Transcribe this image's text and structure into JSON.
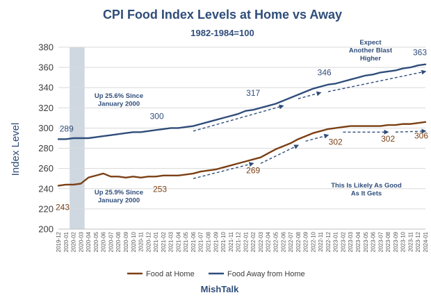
{
  "chart_data": {
    "type": "line",
    "title": "CPI Food Index Levels at Home vs Away",
    "subtitle": "1982-1984=100",
    "ylabel": "Index Level",
    "xlabel": "",
    "source": "MishTalk",
    "ylim": [
      200,
      380
    ],
    "yticks": [
      200,
      220,
      240,
      260,
      280,
      300,
      320,
      340,
      360,
      380
    ],
    "grid": "horizontal",
    "legend_position": "bottom",
    "categories": [
      "2019-12",
      "2020-01",
      "2020-02",
      "2020-03",
      "2020-04",
      "2020-05",
      "2020-06",
      "2020-07",
      "2020-08",
      "2020-09",
      "2020-10",
      "2020-11",
      "2020-12",
      "2021-01",
      "2021-02",
      "2021-03",
      "2021-04",
      "2021-05",
      "2021-06",
      "2021-07",
      "2021-08",
      "2021-09",
      "2021-10",
      "2021-11",
      "2021-12",
      "2022-01",
      "2022-02",
      "2022-03",
      "2022-04",
      "2022-05",
      "2022-06",
      "2022-07",
      "2022-08",
      "2022-09",
      "2022-10",
      "2022-11",
      "2022-12",
      "2023-01",
      "2023-02",
      "2023-03",
      "2023-04",
      "2023-05",
      "2023-06",
      "2023-07",
      "2023-08",
      "2023-09",
      "2023-10",
      "2023-11",
      "2023-12",
      "2024-01"
    ],
    "shaded_region": [
      "2020-02",
      "2020-03"
    ],
    "series": [
      {
        "name": "Food at Home",
        "color": "#7b3f14",
        "values": [
          243,
          244,
          244,
          245,
          251,
          253,
          255,
          252,
          252,
          251,
          252,
          251,
          252,
          252,
          253,
          253,
          253,
          254,
          255,
          257,
          258,
          259,
          261,
          263,
          265,
          267,
          269,
          271,
          275,
          279,
          282,
          285,
          289,
          292,
          295,
          297,
          299,
          300,
          301,
          302,
          302,
          302,
          302,
          302,
          303,
          303,
          304,
          304,
          305,
          306
        ]
      },
      {
        "name": "Food Away from Home",
        "color": "#2f4d7a",
        "values": [
          289,
          289,
          290,
          290,
          290,
          291,
          292,
          293,
          294,
          295,
          296,
          296,
          297,
          298,
          299,
          300,
          300,
          301,
          302,
          304,
          306,
          308,
          310,
          312,
          314,
          317,
          318,
          320,
          322,
          324,
          327,
          330,
          333,
          336,
          339,
          341,
          343,
          344,
          346,
          348,
          350,
          352,
          353,
          355,
          356,
          357,
          359,
          360,
          362,
          363
        ]
      }
    ],
    "data_labels": [
      {
        "series": 0,
        "x": "2019-12",
        "text": "243"
      },
      {
        "series": 0,
        "x": "2021-01",
        "text": "253"
      },
      {
        "series": 0,
        "x": "2022-02",
        "text": "269"
      },
      {
        "series": 0,
        "x": "2023-01",
        "text": "302"
      },
      {
        "series": 0,
        "x": "2023-08",
        "text": "302"
      },
      {
        "series": 0,
        "x": "2024-01",
        "text": "306"
      },
      {
        "series": 1,
        "x": "2020-01",
        "text": "289"
      },
      {
        "series": 1,
        "x": "2021-03",
        "text": "300"
      },
      {
        "series": 1,
        "x": "2022-02",
        "text": "317"
      },
      {
        "series": 1,
        "x": "2023-01",
        "text": "346"
      },
      {
        "series": 1,
        "x": "2024-01",
        "text": "363"
      }
    ],
    "annotations": [
      {
        "lines": [
          "Up 25.6% Since",
          "January 2000"
        ]
      },
      {
        "lines": [
          "Up 25.9% Since",
          "January 2000"
        ]
      },
      {
        "lines": [
          "Expect",
          "Another Blast",
          "Higher"
        ]
      },
      {
        "lines": [
          "This Is Likely As Good",
          "As It Gets"
        ]
      }
    ],
    "trend_arrows": [
      {
        "from": [
          "2021-06",
          297
        ],
        "to": [
          "2022-06",
          322
        ]
      },
      {
        "from": [
          "2022-08",
          329
        ],
        "to": [
          "2022-11",
          335
        ]
      },
      {
        "from": [
          "2022-12",
          336
        ],
        "to": [
          "2024-01",
          356
        ]
      },
      {
        "from": [
          "2021-06",
          250
        ],
        "to": [
          "2022-02",
          265
        ]
      },
      {
        "from": [
          "2022-03",
          265
        ],
        "to": [
          "2022-08",
          283
        ]
      },
      {
        "from": [
          "2022-09",
          287
        ],
        "to": [
          "2022-12",
          293
        ]
      },
      {
        "from": [
          "2023-02",
          296
        ],
        "to": [
          "2023-08",
          296
        ]
      },
      {
        "from": [
          "2023-09",
          296
        ],
        "to": [
          "2024-01",
          297
        ]
      }
    ]
  }
}
